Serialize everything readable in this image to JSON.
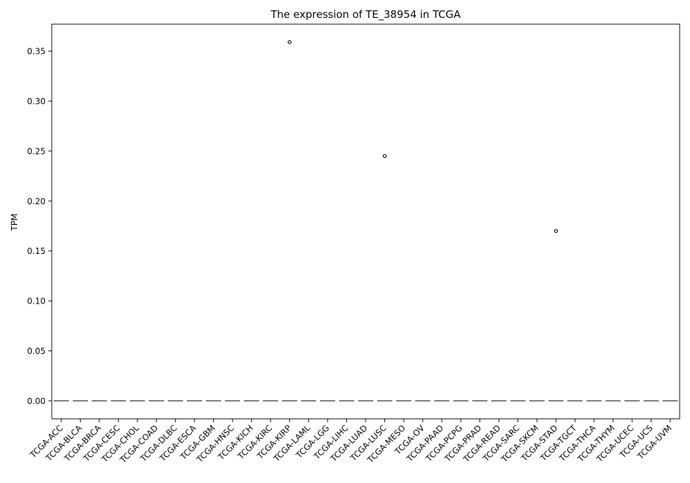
{
  "chart_data": {
    "type": "box",
    "title": "The expression of TE_38954 in TCGA",
    "xlabel": "",
    "ylabel": "TPM",
    "ylim": [
      -0.018,
      0.377
    ],
    "yticks": [
      0.0,
      0.05,
      0.1,
      0.15,
      0.2,
      0.25,
      0.3,
      0.35
    ],
    "ytick_labels": [
      "0.00",
      "0.05",
      "0.10",
      "0.15",
      "0.20",
      "0.25",
      "0.30",
      "0.35"
    ],
    "grid": false,
    "legend": "none",
    "box_color": "#4d4d4d",
    "categories": [
      "TCGA-ACC",
      "TCGA-BLCA",
      "TCGA-BRCA",
      "TCGA-CESC",
      "TCGA-CHOL",
      "TCGA-COAD",
      "TCGA-DLBC",
      "TCGA-ESCA",
      "TCGA-GBM",
      "TCGA-HNSC",
      "TCGA-KICH",
      "TCGA-KIRC",
      "TCGA-KIRP",
      "TCGA-LAML",
      "TCGA-LGG",
      "TCGA-LIHC",
      "TCGA-LUAD",
      "TCGA-LUSC",
      "TCGA-MESO",
      "TCGA-OV",
      "TCGA-PAAD",
      "TCGA-PCPG",
      "TCGA-PRAD",
      "TCGA-READ",
      "TCGA-SARC",
      "TCGA-SKCM",
      "TCGA-STAD",
      "TCGA-TGCT",
      "TCGA-THCA",
      "TCGA-THYM",
      "TCGA-UCEC",
      "TCGA-UCS",
      "TCGA-UVM"
    ],
    "medians": [
      0,
      0,
      0,
      0,
      0,
      0,
      0,
      0,
      0,
      0,
      0,
      0,
      0,
      0,
      0,
      0,
      0,
      0,
      0,
      0,
      0,
      0,
      0,
      0,
      0,
      0,
      0,
      0,
      0,
      0,
      0,
      0,
      0
    ],
    "outliers": [
      {
        "category": "TCGA-KIRP",
        "value": 0.359
      },
      {
        "category": "TCGA-LUSC",
        "value": 0.245
      },
      {
        "category": "TCGA-STAD",
        "value": 0.17
      }
    ]
  }
}
